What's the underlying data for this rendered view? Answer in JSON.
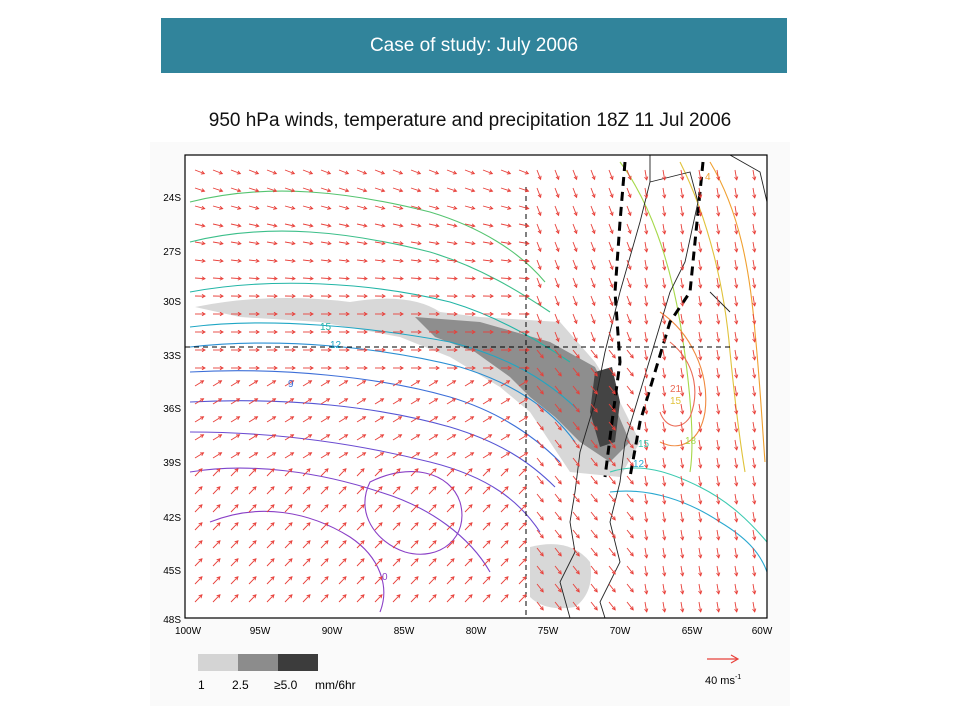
{
  "banner": {
    "title": "Case of study: July 2006",
    "color": "#31849b"
  },
  "figure": {
    "title": "950 hPa winds, temperature and precipitation 18Z 11 Jul 2006",
    "lat_ticks": [
      "24S",
      "27S",
      "30S",
      "33S",
      "36S",
      "39S",
      "42S",
      "45S",
      "48S"
    ],
    "lon_ticks": [
      "100W",
      "95W",
      "90W",
      "85W",
      "80W",
      "75W",
      "70W",
      "65W",
      "60W"
    ],
    "contour_labels": [
      "15",
      "12",
      "9",
      "15",
      "18",
      "21",
      "15",
      "12",
      "0",
      "4"
    ],
    "legend": {
      "labels": [
        "1",
        "2.5",
        "≥5.0",
        "mm/6hr"
      ],
      "colors": [
        "#d4d4d4",
        "#8c8c8c",
        "#3c3c3c"
      ]
    },
    "wind_scale": {
      "label": "40 ms",
      "exp": "-1",
      "color": "#e8403a"
    }
  }
}
